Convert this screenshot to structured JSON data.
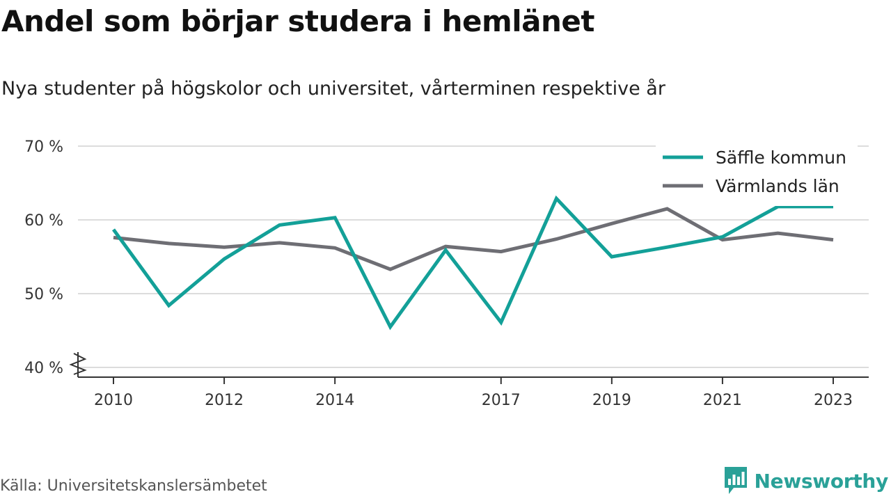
{
  "header": {
    "title": "Andel som börjar studera i hemlänet",
    "subtitle": "Nya studenter på högskolor och universitet, vårterminen respektive år"
  },
  "footer": {
    "source": "Källa: Universitetskanslersämbetet",
    "brand": "Newsworthy",
    "brand_icon": "bar-chart-bubble-icon"
  },
  "colors": {
    "saffle": "#13a098",
    "varmland": "#6e6e74",
    "grid": "#dcdcdc",
    "axis": "#333333",
    "brand": "#2aa198"
  },
  "chart_data": {
    "type": "line",
    "x": [
      2010,
      2011,
      2012,
      2013,
      2014,
      2015,
      2016,
      2017,
      2018,
      2019,
      2020,
      2021,
      2022,
      2023
    ],
    "x_ticks": [
      2010,
      2012,
      2014,
      2017,
      2019,
      2021,
      2023
    ],
    "x_tick_labels": [
      "2010",
      "2012",
      "2014",
      "2017",
      "2019",
      "2021",
      "2023"
    ],
    "y_ticks": [
      40,
      50,
      60,
      70
    ],
    "y_tick_labels": [
      "40 %",
      "50 %",
      "60 %",
      "70 %"
    ],
    "ylim": [
      40,
      70
    ],
    "xlim": [
      2010,
      2023
    ],
    "y_axis_break": true,
    "grid": true,
    "legend_position": "top-right",
    "xlabel": "",
    "ylabel": "",
    "series": [
      {
        "name": "Säffle kommun",
        "color": "#13a098",
        "values": [
          58.7,
          48.4,
          54.7,
          59.3,
          60.3,
          45.5,
          55.9,
          46.1,
          62.9,
          55.0,
          56.3,
          57.7,
          61.8,
          61.8
        ]
      },
      {
        "name": "Värmlands län",
        "color": "#6e6e74",
        "values": [
          57.6,
          56.8,
          56.3,
          56.9,
          56.2,
          53.3,
          56.4,
          55.7,
          57.4,
          59.5,
          61.5,
          57.3,
          58.2,
          57.3
        ]
      }
    ]
  }
}
